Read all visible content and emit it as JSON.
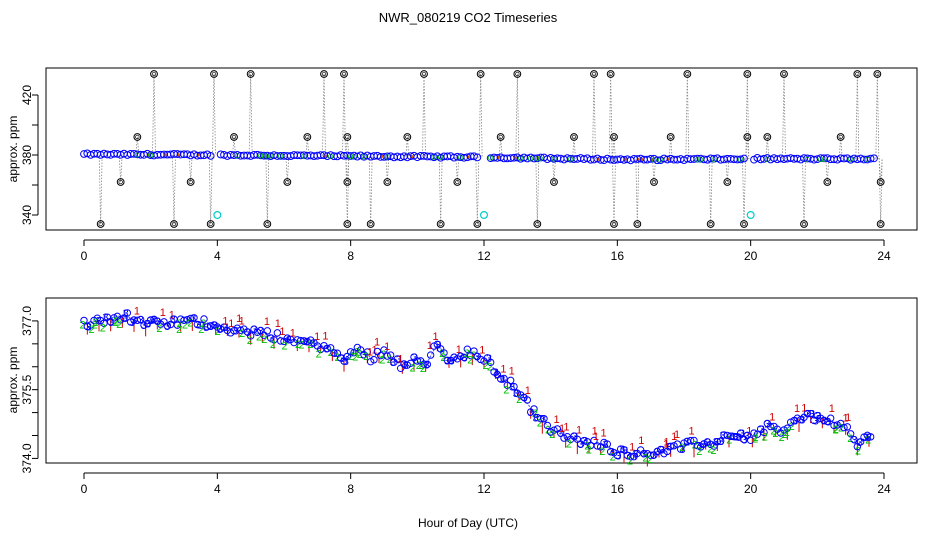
{
  "chart_data": [
    {
      "type": "scatter",
      "title": "NWR_080219  CO2 Timeseries",
      "xlabel": "",
      "ylabel": "approx. ppm",
      "xlim": [
        0,
        24
      ],
      "ylim": [
        330,
        438
      ],
      "x_ticks": [
        "0",
        "4",
        "8",
        "12",
        "16",
        "20",
        "24"
      ],
      "y_ticks": [
        "340",
        "380",
        "420"
      ],
      "baseline_segments": [
        {
          "x0": 0.0,
          "x1": 4.0,
          "y0": 380.5,
          "y1": 380.0
        },
        {
          "x0": 4.0,
          "x1": 12.0,
          "y0": 380.0,
          "y1": 378.5
        },
        {
          "x0": 12.0,
          "x1": 16.0,
          "y0": 378.5,
          "y1": 377.0
        },
        {
          "x0": 16.0,
          "x1": 20.0,
          "y0": 377.0,
          "y1": 377.3
        },
        {
          "x0": 20.0,
          "x1": 23.8,
          "y0": 377.5,
          "y1": 377.3
        }
      ],
      "spikes_high": [
        2.1,
        3.9,
        5.0,
        7.2,
        7.8,
        10.2,
        11.9,
        13.0,
        15.3,
        15.8,
        18.1,
        19.9,
        21.0,
        23.2,
        23.8
      ],
      "spikes_mid": [
        1.6,
        4.5,
        6.7,
        7.9,
        9.7,
        12.5,
        14.7,
        15.9,
        17.6,
        19.9,
        20.5,
        22.7
      ],
      "spikes_low": [
        1.1,
        3.2,
        6.1,
        7.9,
        9.1,
        11.2,
        14.1,
        17.1,
        19.3,
        22.3,
        23.9
      ],
      "spikes_bottom": [
        0.5,
        2.7,
        3.8,
        5.5,
        7.9,
        8.6,
        10.7,
        11.8,
        13.6,
        15.9,
        16.6,
        18.8,
        19.8,
        21.6,
        23.9
      ],
      "cyan_points": [
        {
          "x": 4.0,
          "y": 340
        },
        {
          "x": 12.0,
          "y": 340
        },
        {
          "x": 20.0,
          "y": 340
        }
      ],
      "spike_levels": {
        "high": 434,
        "mid": 392,
        "low": 362,
        "bottom": 334
      }
    },
    {
      "type": "scatter",
      "title": "",
      "xlabel": "Hour of Day (UTC)",
      "ylabel": "approx. ppm",
      "xlim": [
        0,
        24
      ],
      "ylim": [
        373.9,
        377.5
      ],
      "x_ticks": [
        "0",
        "4",
        "8",
        "12",
        "16",
        "20",
        "24"
      ],
      "y_ticks": [
        "374.0",
        "375.5",
        "377.0"
      ],
      "trend": [
        {
          "x": 0.0,
          "y": 376.95
        },
        {
          "x": 0.5,
          "y": 377.0
        },
        {
          "x": 1.0,
          "y": 377.1
        },
        {
          "x": 1.3,
          "y": 377.1
        },
        {
          "x": 1.7,
          "y": 376.95
        },
        {
          "x": 2.5,
          "y": 376.95
        },
        {
          "x": 3.2,
          "y": 377.0
        },
        {
          "x": 3.8,
          "y": 376.95
        },
        {
          "x": 4.5,
          "y": 376.8
        },
        {
          "x": 5.5,
          "y": 376.7
        },
        {
          "x": 6.5,
          "y": 376.55
        },
        {
          "x": 7.2,
          "y": 376.45
        },
        {
          "x": 7.8,
          "y": 376.15
        },
        {
          "x": 8.2,
          "y": 376.4
        },
        {
          "x": 8.6,
          "y": 376.2
        },
        {
          "x": 9.0,
          "y": 376.35
        },
        {
          "x": 9.5,
          "y": 376.05
        },
        {
          "x": 10.0,
          "y": 376.2
        },
        {
          "x": 10.3,
          "y": 376.1
        },
        {
          "x": 10.6,
          "y": 376.5
        },
        {
          "x": 11.0,
          "y": 376.1
        },
        {
          "x": 11.5,
          "y": 376.3
        },
        {
          "x": 12.0,
          "y": 376.2
        },
        {
          "x": 12.5,
          "y": 375.8
        },
        {
          "x": 13.0,
          "y": 375.5
        },
        {
          "x": 13.5,
          "y": 375.0
        },
        {
          "x": 14.0,
          "y": 374.65
        },
        {
          "x": 14.5,
          "y": 374.45
        },
        {
          "x": 15.0,
          "y": 374.35
        },
        {
          "x": 15.6,
          "y": 374.3
        },
        {
          "x": 16.0,
          "y": 374.15
        },
        {
          "x": 16.8,
          "y": 374.1
        },
        {
          "x": 17.5,
          "y": 374.2
        },
        {
          "x": 18.2,
          "y": 374.3
        },
        {
          "x": 19.0,
          "y": 374.35
        },
        {
          "x": 19.5,
          "y": 374.55
        },
        {
          "x": 20.0,
          "y": 374.45
        },
        {
          "x": 20.5,
          "y": 374.7
        },
        {
          "x": 21.0,
          "y": 374.6
        },
        {
          "x": 21.6,
          "y": 374.95
        },
        {
          "x": 22.3,
          "y": 374.85
        },
        {
          "x": 22.8,
          "y": 374.7
        },
        {
          "x": 23.2,
          "y": 374.3
        },
        {
          "x": 23.7,
          "y": 374.55
        }
      ],
      "series_labels": [
        "1",
        "2",
        "3"
      ],
      "series_colors": [
        "#d00000",
        "#00c000",
        "#0000ff"
      ]
    }
  ]
}
